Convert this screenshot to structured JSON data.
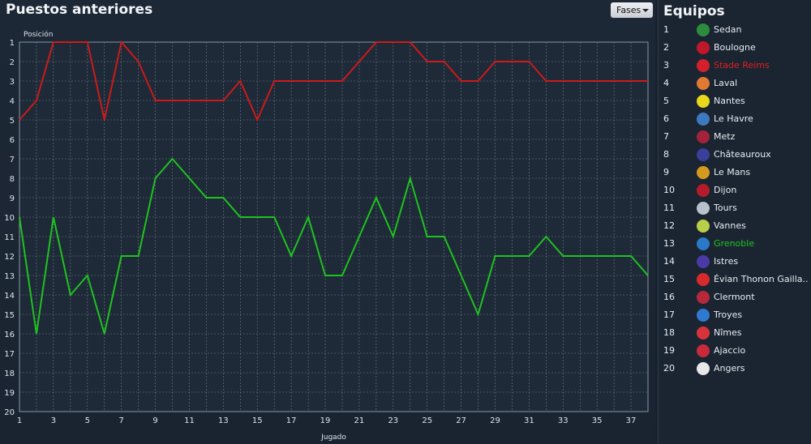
{
  "page": {
    "title": "Puestos anteriores"
  },
  "toolbar": {
    "fases_label": "Fases"
  },
  "chart_data": {
    "type": "line",
    "ylabel": "Posición",
    "xlabel": "Jugado",
    "x": [
      1,
      2,
      3,
      4,
      5,
      6,
      7,
      8,
      9,
      10,
      11,
      12,
      13,
      14,
      15,
      16,
      17,
      18,
      19,
      20,
      21,
      22,
      23,
      24,
      25,
      26,
      27,
      28,
      29,
      30,
      31,
      32,
      33,
      34,
      35,
      36,
      37,
      38
    ],
    "xticks": [
      1,
      3,
      5,
      7,
      9,
      11,
      13,
      15,
      17,
      19,
      21,
      23,
      25,
      27,
      29,
      31,
      33,
      35,
      37
    ],
    "yticks": [
      1,
      2,
      3,
      4,
      5,
      6,
      7,
      8,
      9,
      10,
      11,
      12,
      13,
      14,
      15,
      16,
      17,
      18,
      19,
      20
    ],
    "xlim": [
      1,
      38
    ],
    "ylim": [
      1,
      20
    ],
    "y_inverted": true,
    "grid": true,
    "series": [
      {
        "name": "Stade Reims",
        "color": "#cc1a1a",
        "values": [
          5,
          4,
          1,
          1,
          1,
          5,
          1,
          2,
          4,
          4,
          4,
          4,
          4,
          3,
          5,
          3,
          3,
          3,
          3,
          3,
          2,
          1,
          1,
          1,
          2,
          2,
          3,
          3,
          2,
          2,
          2,
          3,
          3,
          3,
          3,
          3,
          3,
          3
        ]
      },
      {
        "name": "Grenoble",
        "color": "#1fc21f",
        "values": [
          10,
          16,
          10,
          14,
          13,
          16,
          12,
          12,
          8,
          7,
          8,
          9,
          9,
          10,
          10,
          10,
          12,
          10,
          13,
          13,
          11,
          9,
          11,
          8,
          11,
          11,
          13,
          15,
          12,
          12,
          12,
          11,
          12,
          12,
          12,
          12,
          12,
          13
        ]
      }
    ]
  },
  "legend": {
    "title": "Equipos",
    "teams": [
      {
        "rank": "1",
        "name": "Sedan",
        "logo_color": "#2e8b3e",
        "highlight": ""
      },
      {
        "rank": "2",
        "name": "Boulogne",
        "logo_color": "#c0182a",
        "highlight": ""
      },
      {
        "rank": "3",
        "name": "Stade Reims",
        "logo_color": "#d3202c",
        "highlight": "#e01e1e"
      },
      {
        "rank": "4",
        "name": "Laval",
        "logo_color": "#e07a32",
        "highlight": ""
      },
      {
        "rank": "5",
        "name": "Nantes",
        "logo_color": "#e8d81a",
        "highlight": ""
      },
      {
        "rank": "6",
        "name": "Le Havre",
        "logo_color": "#3e79c0",
        "highlight": ""
      },
      {
        "rank": "7",
        "name": "Metz",
        "logo_color": "#a3233a",
        "highlight": ""
      },
      {
        "rank": "8",
        "name": "Châteauroux",
        "logo_color": "#3a3f9a",
        "highlight": ""
      },
      {
        "rank": "9",
        "name": "Le Mans",
        "logo_color": "#d39a1e",
        "highlight": ""
      },
      {
        "rank": "10",
        "name": "Dijon",
        "logo_color": "#b51b2a",
        "highlight": ""
      },
      {
        "rank": "11",
        "name": "Tours",
        "logo_color": "#b8c2cc",
        "highlight": ""
      },
      {
        "rank": "12",
        "name": "Vannes",
        "logo_color": "#b9cf4a",
        "highlight": ""
      },
      {
        "rank": "13",
        "name": "Grenoble",
        "logo_color": "#2a78c8",
        "highlight": "#22c422"
      },
      {
        "rank": "14",
        "name": "Istres",
        "logo_color": "#4a3aa8",
        "highlight": ""
      },
      {
        "rank": "15",
        "name": "Évian Thonon Gailla..",
        "logo_color": "#d82a2a",
        "highlight": ""
      },
      {
        "rank": "16",
        "name": "Clermont",
        "logo_color": "#b5293a",
        "highlight": ""
      },
      {
        "rank": "17",
        "name": "Troyes",
        "logo_color": "#2f7ad0",
        "highlight": ""
      },
      {
        "rank": "18",
        "name": "Nîmes",
        "logo_color": "#d8333a",
        "highlight": ""
      },
      {
        "rank": "19",
        "name": "Ajaccio",
        "logo_color": "#c82a3a",
        "highlight": ""
      },
      {
        "rank": "20",
        "name": "Angers",
        "logo_color": "#e8e8e8",
        "highlight": ""
      }
    ]
  }
}
